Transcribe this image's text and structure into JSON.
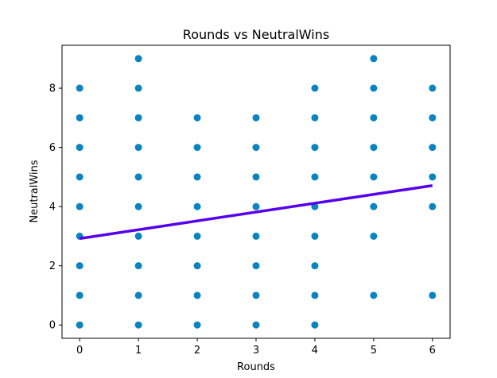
{
  "chart_data": {
    "type": "scatter",
    "title": "Rounds vs NeutralWins",
    "xlabel": "Rounds",
    "ylabel": "NeutralWins",
    "xlim": [
      -0.3,
      6.3
    ],
    "ylim": [
      -0.45,
      9.45
    ],
    "x_ticks": [
      0,
      1,
      2,
      3,
      4,
      5,
      6
    ],
    "y_ticks": [
      0,
      2,
      4,
      6,
      8
    ],
    "grid": false,
    "point_color": "#0a84c1",
    "line_color": "#5500ee",
    "series": [
      {
        "type": "scatter",
        "points": [
          [
            0,
            0
          ],
          [
            0,
            1
          ],
          [
            0,
            2
          ],
          [
            0,
            3
          ],
          [
            0,
            4
          ],
          [
            0,
            5
          ],
          [
            0,
            6
          ],
          [
            0,
            7
          ],
          [
            0,
            8
          ],
          [
            1,
            0
          ],
          [
            1,
            1
          ],
          [
            1,
            2
          ],
          [
            1,
            3
          ],
          [
            1,
            4
          ],
          [
            1,
            5
          ],
          [
            1,
            6
          ],
          [
            1,
            7
          ],
          [
            1,
            8
          ],
          [
            1,
            9
          ],
          [
            2,
            0
          ],
          [
            2,
            1
          ],
          [
            2,
            2
          ],
          [
            2,
            3
          ],
          [
            2,
            4
          ],
          [
            2,
            5
          ],
          [
            2,
            6
          ],
          [
            2,
            7
          ],
          [
            3,
            0
          ],
          [
            3,
            1
          ],
          [
            3,
            2
          ],
          [
            3,
            3
          ],
          [
            3,
            4
          ],
          [
            3,
            5
          ],
          [
            3,
            6
          ],
          [
            3,
            7
          ],
          [
            4,
            0
          ],
          [
            4,
            1
          ],
          [
            4,
            2
          ],
          [
            4,
            3
          ],
          [
            4,
            4
          ],
          [
            4,
            5
          ],
          [
            4,
            6
          ],
          [
            4,
            7
          ],
          [
            4,
            8
          ],
          [
            5,
            1
          ],
          [
            5,
            3
          ],
          [
            5,
            4
          ],
          [
            5,
            5
          ],
          [
            5,
            6
          ],
          [
            5,
            7
          ],
          [
            5,
            8
          ],
          [
            5,
            9
          ],
          [
            6,
            1
          ],
          [
            6,
            4
          ],
          [
            6,
            5
          ],
          [
            6,
            6
          ],
          [
            6,
            7
          ],
          [
            6,
            8
          ]
        ]
      },
      {
        "type": "line",
        "x": [
          0,
          6
        ],
        "y": [
          2.92,
          4.71
        ]
      }
    ]
  }
}
